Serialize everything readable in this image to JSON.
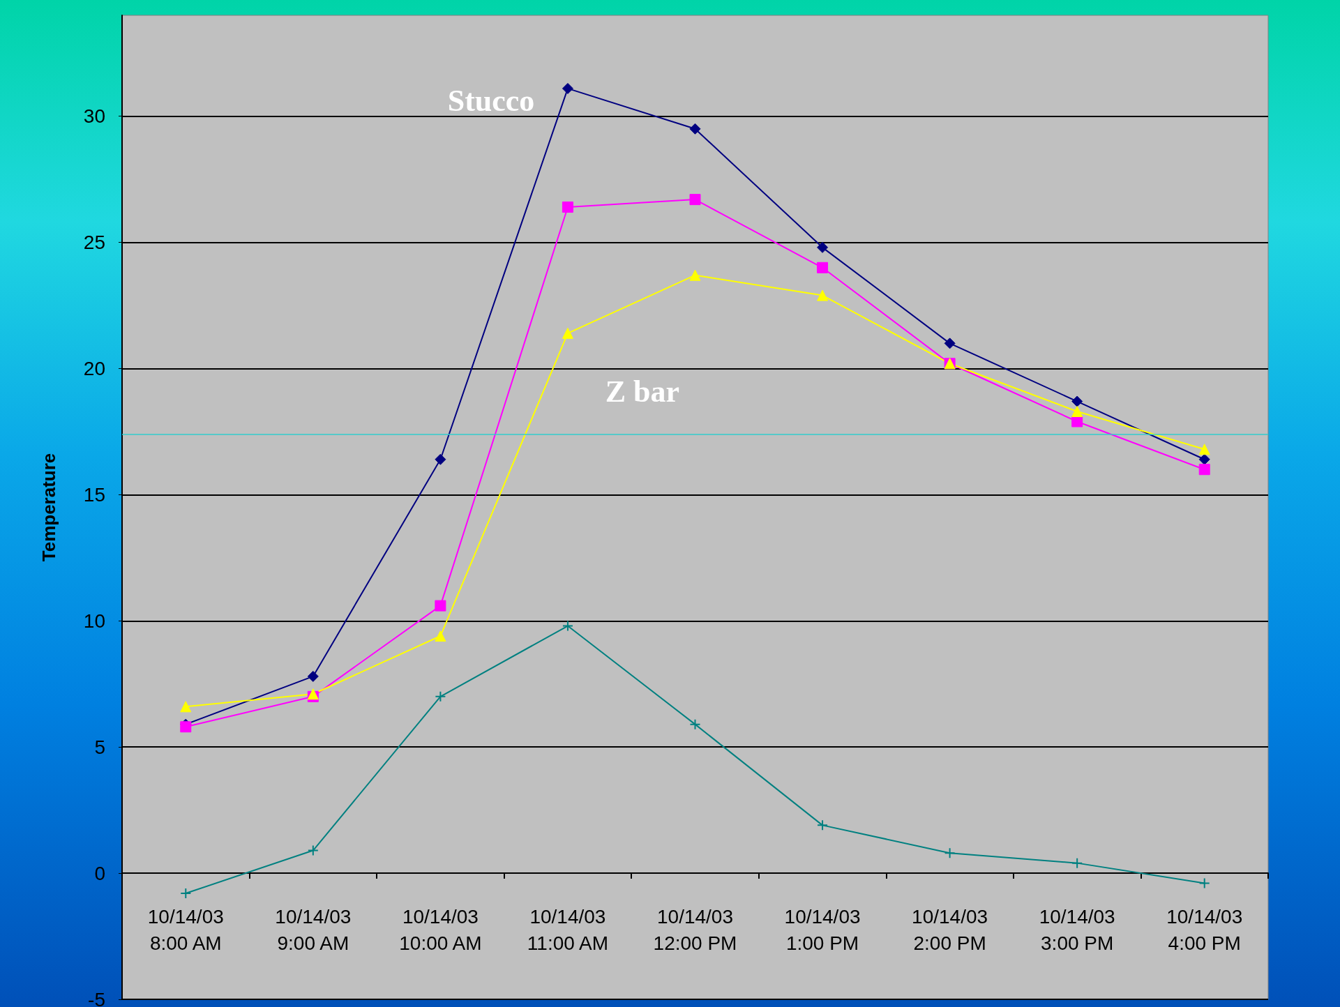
{
  "chart_data": {
    "type": "line",
    "ylabel": "Temperature",
    "categories": [
      "10/14/03\n8:00 AM",
      "10/14/03\n9:00 AM",
      "10/14/03\n10:00 AM",
      "10/14/03\n11:00 AM",
      "10/14/03\n12:00 PM",
      "10/14/03\n1:00 PM",
      "10/14/03\n2:00 PM",
      "10/14/03\n3:00 PM",
      "10/14/03\n4:00 PM"
    ],
    "series": [
      {
        "color": "#000080",
        "marker": "diamond",
        "values": [
          5.9,
          7.8,
          16.4,
          31.1,
          29.5,
          24.8,
          21.0,
          18.7,
          16.4
        ]
      },
      {
        "color": "#ff00ff",
        "marker": "square",
        "values": [
          5.8,
          7.0,
          10.6,
          26.4,
          26.7,
          24.0,
          20.2,
          17.9,
          16.0
        ]
      },
      {
        "color": "#ffff00",
        "marker": "triangle",
        "values": [
          6.6,
          7.1,
          9.4,
          21.4,
          23.7,
          22.9,
          20.2,
          18.3,
          16.8
        ]
      },
      {
        "color": "#008080",
        "marker": "cross",
        "values": [
          -0.8,
          0.9,
          7.0,
          9.8,
          5.9,
          1.9,
          0.8,
          0.4,
          -0.4
        ]
      }
    ],
    "ylim": [
      -5,
      34
    ],
    "yticks": [
      -5,
      0,
      5,
      10,
      15,
      20,
      25,
      30
    ],
    "grid": "y",
    "ref_lines": [
      {
        "axis": "y",
        "value": 17.4,
        "color": "#33cccc"
      }
    ],
    "annotations": [
      "Stucco",
      "Z bar"
    ]
  }
}
